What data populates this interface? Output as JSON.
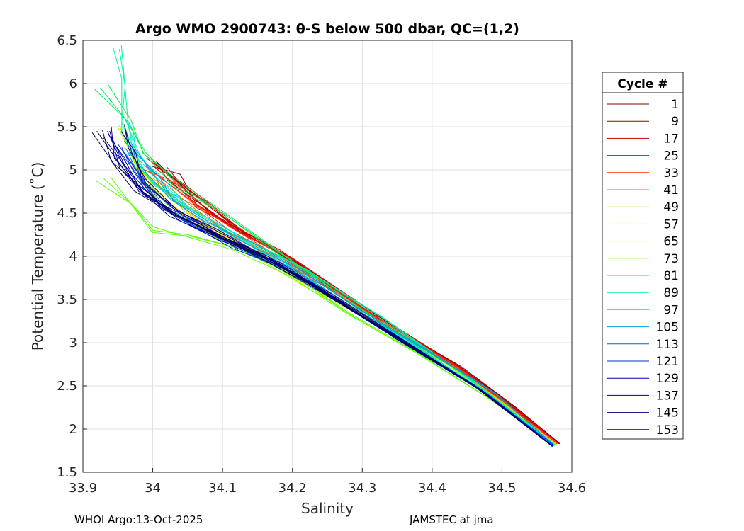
{
  "chart_data": {
    "type": "line",
    "title": "Argo WMO 2900743: θ-S below 500 dbar,  QC=(1,2)",
    "xlabel": "Salinity",
    "ylabel": "Potential Temperature (˚C)",
    "xlim": [
      33.9,
      34.6
    ],
    "ylim": [
      1.5,
      6.5
    ],
    "xticks": [
      "33.9",
      "34",
      "34.1",
      "34.2",
      "34.3",
      "34.4",
      "34.5",
      "34.6"
    ],
    "yticks": [
      "1.5",
      "2",
      "2.5",
      "3",
      "3.5",
      "4",
      "4.5",
      "5",
      "5.5",
      "6",
      "6.5"
    ],
    "grid": true,
    "legend": {
      "title": "Cycle #",
      "position": "outside-right",
      "entries": [
        {
          "label": "1",
          "color": "#7f0000"
        },
        {
          "label": "9",
          "color": "#9a0000"
        },
        {
          "label": "17",
          "color": "#c80000"
        },
        {
          "label": "25",
          "color": "#e60000"
        },
        {
          "label": "33",
          "color": "#ff2a00"
        },
        {
          "label": "41",
          "color": "#e07000"
        },
        {
          "label": "49",
          "color": "#f0b400"
        },
        {
          "label": "57",
          "color": "#ffee00"
        },
        {
          "label": "65",
          "color": "#b4f000"
        },
        {
          "label": "73",
          "color": "#5aff00"
        },
        {
          "label": "81",
          "color": "#00f050"
        },
        {
          "label": "89",
          "color": "#00f0a0"
        },
        {
          "label": "97",
          "color": "#00e6e6"
        },
        {
          "label": "105",
          "color": "#00a0dc"
        },
        {
          "label": "113",
          "color": "#0064c8"
        },
        {
          "label": "121",
          "color": "#0032c8"
        },
        {
          "label": "129",
          "color": "#0000b4"
        },
        {
          "label": "137",
          "color": "#000096"
        },
        {
          "label": "145",
          "color": "#000078"
        },
        {
          "label": "153",
          "color": "#00005a"
        }
      ]
    },
    "series": [
      {
        "name": "1",
        "color": "#7f0000",
        "x": [
          34.005,
          34.03,
          34.07,
          34.12,
          34.18,
          34.26,
          34.34,
          34.44,
          34.52,
          34.583
        ],
        "y": [
          5.1,
          4.9,
          4.6,
          4.3,
          4.05,
          3.65,
          3.22,
          2.72,
          2.25,
          1.83
        ]
      },
      {
        "name": "9",
        "color": "#9a0000",
        "x": [
          34.01,
          34.04,
          34.08,
          34.13,
          34.19,
          34.26,
          34.34,
          34.44,
          34.52,
          34.582
        ],
        "y": [
          5.05,
          4.85,
          4.58,
          4.28,
          4.02,
          3.63,
          3.2,
          2.71,
          2.24,
          1.83
        ]
      },
      {
        "name": "17",
        "color": "#c80000",
        "x": [
          34.0,
          34.03,
          34.07,
          34.12,
          34.18,
          34.25,
          34.33,
          34.43,
          34.51,
          34.58
        ],
        "y": [
          5.1,
          4.88,
          4.6,
          4.3,
          4.05,
          3.68,
          3.25,
          2.76,
          2.28,
          1.84
        ]
      },
      {
        "name": "25",
        "color": "#e60000",
        "x": [
          34.02,
          34.05,
          34.09,
          34.14,
          34.2,
          34.27,
          34.35,
          34.44,
          34.52,
          34.581
        ],
        "y": [
          4.95,
          4.78,
          4.52,
          4.24,
          3.98,
          3.6,
          3.17,
          2.71,
          2.24,
          1.83
        ]
      },
      {
        "name": "33",
        "color": "#ff2a00",
        "x": [
          33.99,
          34.02,
          34.06,
          34.11,
          34.17,
          34.25,
          34.33,
          34.43,
          34.51,
          34.579
        ],
        "y": [
          5.05,
          4.86,
          4.6,
          4.3,
          4.05,
          3.66,
          3.23,
          2.74,
          2.27,
          1.83
        ]
      },
      {
        "name": "41",
        "color": "#e07000",
        "x": [
          33.99,
          34.02,
          34.06,
          34.11,
          34.17,
          34.25,
          34.33,
          34.43,
          34.51,
          34.578
        ],
        "y": [
          5.0,
          4.82,
          4.55,
          4.27,
          4.02,
          3.64,
          3.21,
          2.73,
          2.26,
          1.82
        ]
      },
      {
        "name": "49",
        "color": "#f0b400",
        "x": [
          33.98,
          34.01,
          34.05,
          34.1,
          34.16,
          34.24,
          34.33,
          34.43,
          34.51,
          34.578
        ],
        "y": [
          5.0,
          4.8,
          4.53,
          4.25,
          4.0,
          3.62,
          3.2,
          2.72,
          2.25,
          1.82
        ]
      },
      {
        "name": "57",
        "color": "#ffee00",
        "x": [
          33.98,
          34.01,
          34.05,
          34.1,
          34.16,
          34.24,
          34.33,
          34.43,
          34.51,
          34.577
        ],
        "y": [
          4.98,
          4.78,
          4.52,
          4.24,
          3.99,
          3.61,
          3.19,
          2.71,
          2.24,
          1.82
        ]
      },
      {
        "name": "65",
        "color": "#b4f000",
        "x": [
          33.95,
          33.98,
          34.02,
          34.08,
          34.15,
          34.23,
          34.32,
          34.42,
          34.51,
          34.576
        ],
        "y": [
          5.5,
          5.0,
          4.6,
          4.3,
          4.0,
          3.62,
          3.22,
          2.75,
          2.24,
          1.82
        ]
      },
      {
        "name": "73",
        "color": "#5aff00",
        "x": [
          33.93,
          33.97,
          34.0,
          34.05,
          34.12,
          34.2,
          34.28,
          34.38,
          34.48,
          34.575
        ],
        "y": [
          4.9,
          4.6,
          4.3,
          4.25,
          4.1,
          3.78,
          3.35,
          2.88,
          2.36,
          1.82
        ]
      },
      {
        "name": "81",
        "color": "#00f050",
        "x": [
          33.925,
          33.96,
          33.99,
          34.04,
          34.1,
          34.18,
          34.27,
          34.37,
          34.48,
          34.575
        ],
        "y": [
          5.95,
          5.6,
          5.2,
          4.8,
          4.5,
          4.05,
          3.55,
          3.0,
          2.4,
          1.82
        ]
      },
      {
        "name": "89",
        "color": "#00f0a0",
        "x": [
          33.955,
          33.96,
          33.965,
          33.98,
          34.0,
          34.05,
          34.12,
          34.22,
          34.33,
          34.45,
          34.576
        ],
        "y": [
          6.45,
          6.0,
          5.5,
          5.1,
          4.85,
          4.58,
          4.25,
          3.85,
          3.28,
          2.6,
          1.82
        ]
      },
      {
        "name": "97",
        "color": "#00e6e6",
        "x": [
          33.96,
          33.98,
          34.01,
          34.05,
          34.11,
          34.18,
          34.27,
          34.37,
          34.47,
          34.575
        ],
        "y": [
          5.6,
          5.2,
          4.85,
          4.55,
          4.25,
          3.95,
          3.5,
          2.98,
          2.46,
          1.82
        ]
      },
      {
        "name": "105",
        "color": "#00a0dc",
        "x": [
          33.97,
          34.0,
          34.03,
          34.08,
          34.14,
          34.21,
          34.29,
          34.39,
          34.49,
          34.575
        ],
        "y": [
          5.3,
          4.95,
          4.65,
          4.4,
          4.12,
          3.85,
          3.42,
          2.92,
          2.42,
          1.81
        ]
      },
      {
        "name": "113",
        "color": "#0064c8",
        "x": [
          33.96,
          33.99,
          34.02,
          34.07,
          34.13,
          34.2,
          34.28,
          34.38,
          34.48,
          34.574
        ],
        "y": [
          5.2,
          4.85,
          4.55,
          4.32,
          4.08,
          3.82,
          3.4,
          2.9,
          2.4,
          1.81
        ]
      },
      {
        "name": "121",
        "color": "#0032c8",
        "x": [
          33.95,
          33.98,
          34.01,
          34.06,
          34.12,
          34.19,
          34.27,
          34.37,
          34.48,
          34.574
        ],
        "y": [
          5.3,
          4.95,
          4.6,
          4.35,
          4.1,
          3.85,
          3.45,
          2.94,
          2.4,
          1.81
        ]
      },
      {
        "name": "129",
        "color": "#0000b4",
        "x": [
          33.94,
          33.96,
          33.99,
          34.04,
          34.1,
          34.18,
          34.26,
          34.36,
          34.47,
          34.573
        ],
        "y": [
          5.4,
          5.05,
          4.7,
          4.45,
          4.2,
          3.92,
          3.5,
          3.0,
          2.45,
          1.8
        ]
      },
      {
        "name": "137",
        "color": "#000096",
        "x": [
          33.935,
          33.955,
          33.98,
          34.03,
          34.09,
          34.17,
          34.25,
          34.35,
          34.46,
          34.573
        ],
        "y": [
          5.45,
          5.1,
          4.75,
          4.5,
          4.25,
          3.95,
          3.55,
          3.05,
          2.5,
          1.8
        ]
      },
      {
        "name": "145",
        "color": "#000078",
        "x": [
          33.96,
          33.97,
          33.99,
          34.03,
          34.09,
          34.16,
          34.25,
          34.35,
          34.46,
          34.572
        ],
        "y": [
          5.5,
          5.2,
          4.85,
          4.55,
          4.3,
          4.0,
          3.58,
          3.07,
          2.51,
          1.8
        ]
      },
      {
        "name": "153",
        "color": "#00005a",
        "x": [
          33.92,
          33.95,
          33.98,
          34.03,
          34.09,
          34.16,
          34.25,
          34.35,
          34.46,
          34.572
        ],
        "y": [
          5.45,
          5.1,
          4.78,
          4.5,
          4.25,
          3.98,
          3.56,
          3.06,
          2.5,
          1.8
        ]
      }
    ]
  },
  "footer": {
    "left": "WHOI Argo:13-Oct-2025",
    "right": "JAMSTEC at jma"
  }
}
